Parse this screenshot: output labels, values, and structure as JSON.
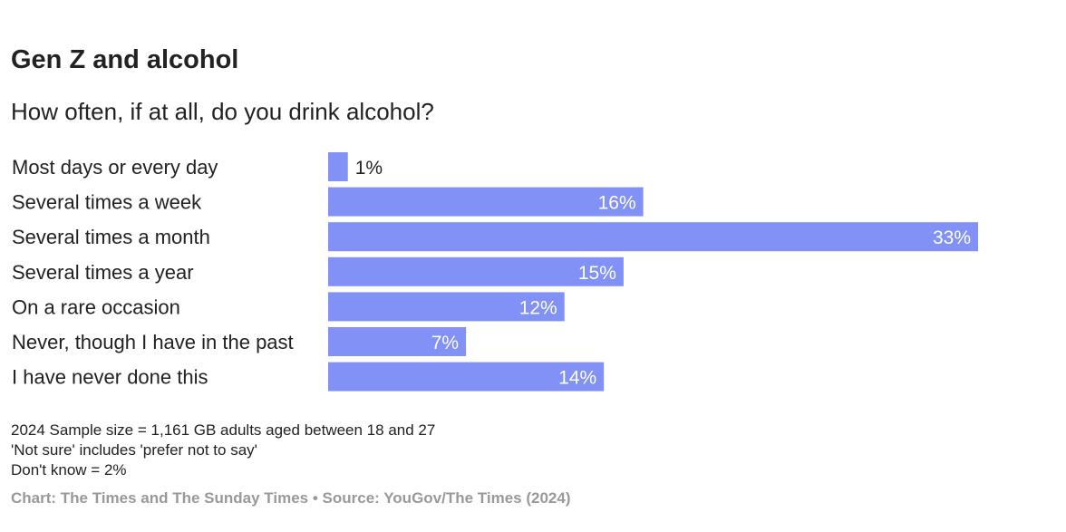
{
  "title": "Gen Z and alcohol",
  "subtitle": "How often, if at all, do you drink alcohol?",
  "chart_data": {
    "type": "bar",
    "orientation": "horizontal",
    "categories": [
      "Most days or every day",
      "Several times a week",
      "Several times a month",
      "Several times a year",
      "On a rare occasion",
      "Never, though I have in the past",
      "I have never done this"
    ],
    "values": [
      1,
      16,
      33,
      15,
      12,
      7,
      14
    ],
    "labels": [
      "1%",
      "16%",
      "33%",
      "15%",
      "12%",
      "7%",
      "14%"
    ],
    "unit": "%",
    "xlim": [
      0,
      33
    ],
    "grid": false,
    "bar_color": "#8191f5"
  },
  "notes": [
    "2024 Sample size = 1,161 GB adults aged between 18 and 27",
    "'Not sure' includes 'prefer not to say'",
    "Don't know = 2%"
  ],
  "credit": "Chart: The Times and The Sunday Times • Source: YouGov/The Times (2024)"
}
